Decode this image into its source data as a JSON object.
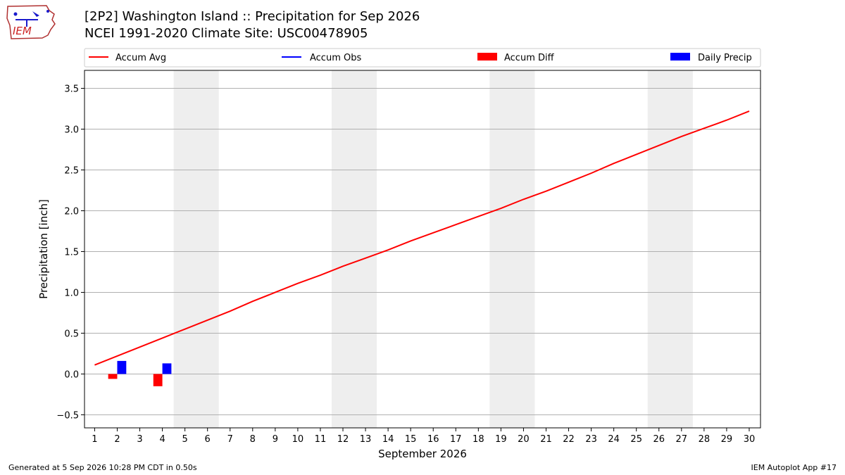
{
  "header": {
    "title_line1": "[2P2] Washington Island :: Precipitation for Sep 2026",
    "title_line2": "NCEI 1991-2020 Climate Site: USC00478905",
    "logo_text": "IEM"
  },
  "footer": {
    "generated": "Generated at 5 Sep 2026 10:28 PM CDT in 0.50s",
    "app": "IEM Autoplot App #17"
  },
  "colors": {
    "accum_avg": "#ff0000",
    "accum_obs": "#0000ff",
    "accum_diff": "#ff0000",
    "daily_precip": "#0000ff",
    "weekend_band": "#eeeeee",
    "grid": "#b0b0b0"
  },
  "chart_data": {
    "type": "line",
    "xlabel": "September 2026",
    "ylabel": "Precipitation [inch]",
    "xlim": [
      0.55,
      30.5
    ],
    "ylim": [
      -0.66,
      3.72
    ],
    "x_ticks": [
      1,
      2,
      3,
      4,
      5,
      6,
      7,
      8,
      9,
      10,
      11,
      12,
      13,
      14,
      15,
      16,
      17,
      18,
      19,
      20,
      21,
      22,
      23,
      24,
      25,
      26,
      27,
      28,
      29,
      30
    ],
    "y_ticks": [
      -0.5,
      0.0,
      0.5,
      1.0,
      1.5,
      2.0,
      2.5,
      3.0,
      3.5
    ],
    "y_tick_labels": [
      "−0.5",
      "0.0",
      "0.5",
      "1.0",
      "1.5",
      "2.0",
      "2.5",
      "3.0",
      "3.5"
    ],
    "grid": "horizontal",
    "legend_position": "top",
    "weekend_bands": [
      [
        4.5,
        6.5
      ],
      [
        11.5,
        13.5
      ],
      [
        18.5,
        20.5
      ],
      [
        25.5,
        27.5
      ]
    ],
    "legend": [
      "Accum Avg",
      "Accum Obs",
      "Accum Diff",
      "Daily Precip"
    ],
    "series": [
      {
        "name": "Accum Avg",
        "kind": "line",
        "x": [
          1,
          2,
          3,
          4,
          5,
          6,
          7,
          8,
          9,
          10,
          11,
          12,
          13,
          14,
          15,
          16,
          17,
          18,
          19,
          20,
          21,
          22,
          23,
          24,
          25,
          26,
          27,
          28,
          29,
          30
        ],
        "values": [
          0.11,
          0.22,
          0.33,
          0.44,
          0.55,
          0.66,
          0.77,
          0.89,
          1.0,
          1.11,
          1.21,
          1.32,
          1.42,
          1.52,
          1.63,
          1.73,
          1.83,
          1.93,
          2.03,
          2.14,
          2.24,
          2.35,
          2.46,
          2.58,
          2.69,
          2.8,
          2.91,
          3.01,
          3.11,
          3.22
        ]
      },
      {
        "name": "Accum Obs",
        "kind": "line",
        "x": [],
        "values": []
      },
      {
        "name": "Accum Diff",
        "kind": "bar",
        "offset": -0.2,
        "x": [
          2,
          4
        ],
        "values": [
          -0.06,
          -0.15
        ]
      },
      {
        "name": "Daily Precip",
        "kind": "bar",
        "offset": 0.2,
        "x": [
          2,
          4
        ],
        "values": [
          0.16,
          0.13
        ]
      }
    ]
  }
}
